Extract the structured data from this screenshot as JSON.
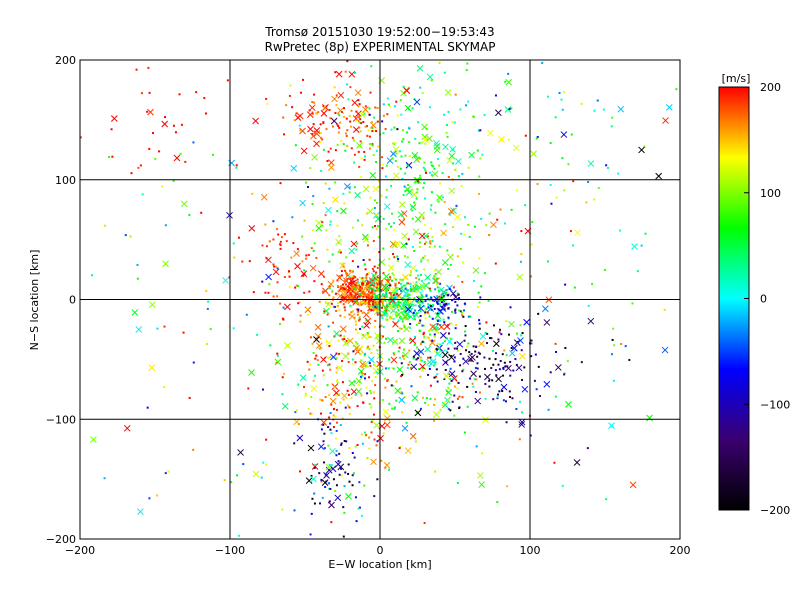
{
  "chart_data": {
    "type": "scatter",
    "title": "Tromsø 20151030 19:52:00−19:53:43",
    "subtitle": "RwPretec (8p) EXPERIMENTAL SKYMAP",
    "xlabel": "E−W location [km]",
    "ylabel": "N−S location [km]",
    "xlim": [
      -200,
      200
    ],
    "ylim": [
      -200,
      200
    ],
    "x_ticks": [
      "−200",
      "−100",
      "0",
      "100",
      "200"
    ],
    "y_ticks": [
      "−200",
      "−100",
      "0",
      "100",
      "200"
    ],
    "grid": true,
    "marker_types": [
      "dot",
      "cross"
    ],
    "colorbar": {
      "label": "[m/s]",
      "range": [
        -200,
        200
      ],
      "ticks": [
        "200",
        "100",
        "0",
        "−100",
        "−200"
      ],
      "colormap": [
        "#000000",
        "#3a0070",
        "#0000ff",
        "#00ffff",
        "#00ff00",
        "#ffff00",
        "#ff0000"
      ]
    },
    "clusters": [
      {
        "cx": -10,
        "cy": 5,
        "sx": 12,
        "sy": 10,
        "n": 340,
        "vmean": 185,
        "vsd": 25
      },
      {
        "cx": 15,
        "cy": 0,
        "sx": 12,
        "sy": 10,
        "n": 230,
        "vmean": 50,
        "vsd": 40
      },
      {
        "cx": 40,
        "cy": -5,
        "sx": 8,
        "sy": 8,
        "n": 70,
        "vmean": -80,
        "vsd": 40
      },
      {
        "cx": -30,
        "cy": 150,
        "sx": 18,
        "sy": 18,
        "n": 130,
        "vmean": 185,
        "vsd": 25
      },
      {
        "cx": 25,
        "cy": 130,
        "sx": 25,
        "sy": 35,
        "n": 160,
        "vmean": 60,
        "vsd": 50
      },
      {
        "cx": 15,
        "cy": 60,
        "sx": 25,
        "sy": 40,
        "n": 200,
        "vmean": 100,
        "vsd": 50
      },
      {
        "cx": -20,
        "cy": -60,
        "sx": 20,
        "sy": 45,
        "n": 250,
        "vmean": 155,
        "vsd": 45
      },
      {
        "cx": 25,
        "cy": -40,
        "sx": 25,
        "sy": 30,
        "n": 230,
        "vmean": 80,
        "vsd": 70
      },
      {
        "cx": 70,
        "cy": -55,
        "sx": 25,
        "sy": 20,
        "n": 160,
        "vmean": -140,
        "vsd": 50
      },
      {
        "cx": -30,
        "cy": -150,
        "sx": 12,
        "sy": 25,
        "n": 80,
        "vmean": -110,
        "vsd": 60
      },
      {
        "cx": -150,
        "cy": 155,
        "sx": 30,
        "sy": 25,
        "n": 30,
        "vmean": 200,
        "vsd": 10
      },
      {
        "cx": -60,
        "cy": 30,
        "sx": 20,
        "sy": 20,
        "n": 60,
        "vmean": 190,
        "vsd": 15
      },
      {
        "cx": 120,
        "cy": 140,
        "sx": 35,
        "sy": 40,
        "n": 50,
        "vmean": 40,
        "vsd": 80
      },
      {
        "cx": 0,
        "cy": 0,
        "sx": 110,
        "sy": 110,
        "n": 420,
        "vmean": 60,
        "vsd": 110
      }
    ]
  }
}
